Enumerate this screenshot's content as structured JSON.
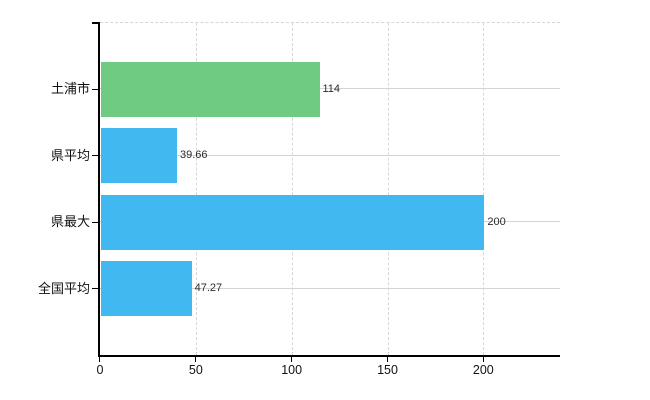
{
  "chart_data": {
    "type": "bar",
    "orientation": "horizontal",
    "title": "",
    "xlabel": "",
    "ylabel": "",
    "categories": [
      "土浦市",
      "県平均",
      "県最大",
      "全国平均"
    ],
    "values": [
      114,
      39.66,
      200,
      47.27
    ],
    "value_labels": [
      "114",
      "39.66",
      "200",
      "47.27"
    ],
    "bar_colors": [
      "#6ecb81",
      "#41b9f0",
      "#41b9f0",
      "#41b9f0"
    ],
    "x_ticks": [
      0,
      50,
      100,
      150,
      200
    ],
    "x_tick_labels": [
      "0",
      "50",
      "100",
      "150",
      "200"
    ],
    "xlim": [
      0,
      240
    ],
    "grid": true,
    "legend": false
  },
  "colors": {
    "background": "#ffffff",
    "axis": "#000000",
    "grid_horizontal": "#cfd7d0",
    "grid_vertical": "#d5d5da",
    "bar_green": "#6ecb81",
    "bar_blue": "#41b9f0",
    "text": "#111111"
  }
}
